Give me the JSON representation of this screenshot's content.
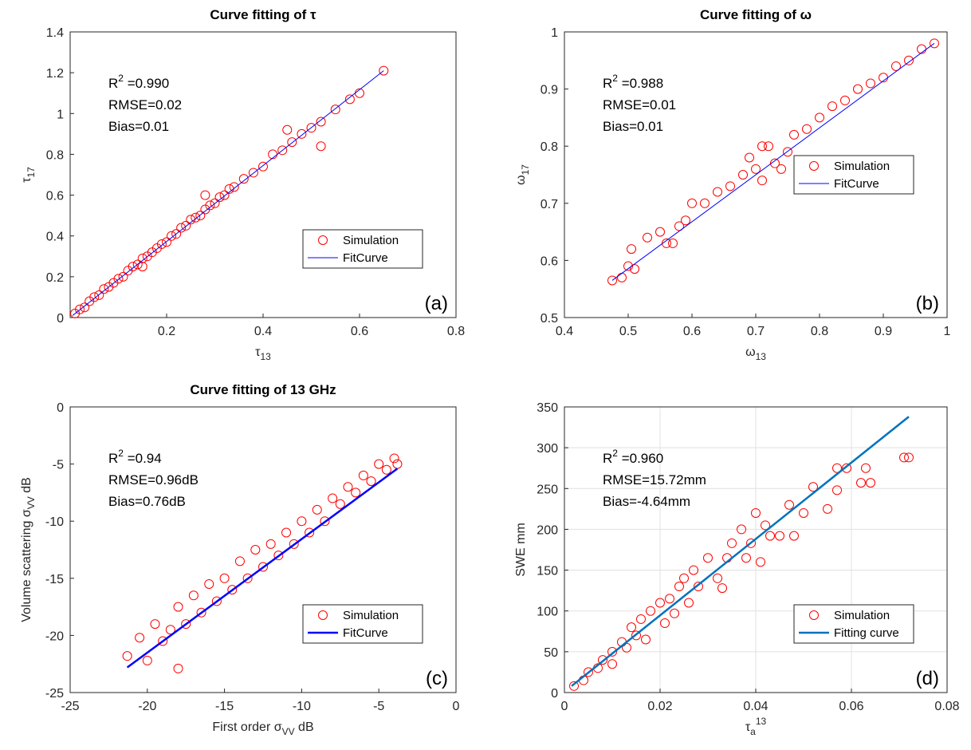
{
  "chart_data": [
    {
      "type": "scatter",
      "title": "Curve fitting of τ",
      "xlabel": [
        {
          "t": "τ"
        },
        {
          "sub": "13"
        }
      ],
      "ylabel": [
        {
          "t": "τ"
        },
        {
          "sub": "17"
        }
      ],
      "xlim": [
        0,
        0.8
      ],
      "xticks": [
        0.2,
        0.4,
        0.6,
        0.8
      ],
      "ylim": [
        0,
        1.4
      ],
      "yticks": [
        0,
        0.2,
        0.4,
        0.6,
        0.8,
        1,
        1.2,
        1.4
      ],
      "grid": false,
      "legend": "lower right",
      "panel_label": "(a)",
      "annotations": [
        [
          {
            "t": "R"
          },
          {
            "sup": "2"
          },
          {
            "t": " =0.990"
          }
        ],
        [
          {
            "t": "RMSE=0.02"
          }
        ],
        [
          {
            "t": "Bias=0.01"
          }
        ]
      ],
      "series": [
        {
          "name": "Simulation",
          "type": "scatter",
          "color": "#ff0000",
          "x": [
            0.01,
            0.02,
            0.03,
            0.04,
            0.05,
            0.06,
            0.07,
            0.08,
            0.09,
            0.1,
            0.11,
            0.12,
            0.13,
            0.14,
            0.15,
            0.16,
            0.17,
            0.18,
            0.19,
            0.2,
            0.21,
            0.22,
            0.23,
            0.24,
            0.25,
            0.26,
            0.27,
            0.28,
            0.29,
            0.3,
            0.31,
            0.32,
            0.33,
            0.34,
            0.36,
            0.38,
            0.4,
            0.42,
            0.44,
            0.46,
            0.48,
            0.5,
            0.52,
            0.55,
            0.58,
            0.6,
            0.65,
            0.52,
            0.45,
            0.28,
            0.15
          ],
          "values": [
            0.02,
            0.04,
            0.05,
            0.08,
            0.1,
            0.11,
            0.14,
            0.15,
            0.17,
            0.19,
            0.2,
            0.23,
            0.25,
            0.26,
            0.29,
            0.3,
            0.32,
            0.34,
            0.36,
            0.37,
            0.4,
            0.41,
            0.44,
            0.45,
            0.48,
            0.49,
            0.5,
            0.53,
            0.55,
            0.56,
            0.59,
            0.6,
            0.63,
            0.64,
            0.68,
            0.71,
            0.74,
            0.8,
            0.82,
            0.86,
            0.9,
            0.93,
            0.96,
            1.02,
            1.07,
            1.1,
            1.21,
            0.84,
            0.92,
            0.6,
            0.25
          ]
        },
        {
          "name": "FitCurve",
          "type": "line",
          "color": "#0000ff",
          "x": [
            0.005,
            0.65
          ],
          "values": [
            0.01,
            1.21
          ]
        }
      ]
    },
    {
      "type": "scatter",
      "title": "Curve fitting of ω",
      "xlabel": [
        {
          "t": "ω"
        },
        {
          "sub": "13"
        }
      ],
      "ylabel": [
        {
          "t": "ω"
        },
        {
          "sub": "17"
        }
      ],
      "xlim": [
        0.4,
        1
      ],
      "xticks": [
        0.4,
        0.5,
        0.6,
        0.7,
        0.8,
        0.9,
        1
      ],
      "ylim": [
        0.5,
        1
      ],
      "yticks": [
        0.5,
        0.6,
        0.7,
        0.8,
        0.9,
        1
      ],
      "grid": false,
      "legend": "right",
      "panel_label": "(b)",
      "annotations": [
        [
          {
            "t": "R"
          },
          {
            "sup": "2"
          },
          {
            "t": " =0.988"
          }
        ],
        [
          {
            "t": "RMSE=0.01"
          }
        ],
        [
          {
            "t": "Bias=0.01"
          }
        ]
      ],
      "series": [
        {
          "name": "Simulation",
          "type": "scatter",
          "color": "#ff0000",
          "x": [
            0.475,
            0.49,
            0.5,
            0.505,
            0.51,
            0.53,
            0.55,
            0.56,
            0.57,
            0.58,
            0.59,
            0.6,
            0.62,
            0.64,
            0.66,
            0.68,
            0.69,
            0.7,
            0.71,
            0.72,
            0.73,
            0.75,
            0.76,
            0.78,
            0.8,
            0.82,
            0.84,
            0.86,
            0.88,
            0.9,
            0.92,
            0.94,
            0.96,
            0.98,
            0.71,
            0.74
          ],
          "values": [
            0.565,
            0.57,
            0.59,
            0.62,
            0.585,
            0.64,
            0.65,
            0.63,
            0.63,
            0.66,
            0.67,
            0.7,
            0.7,
            0.72,
            0.73,
            0.75,
            0.78,
            0.76,
            0.74,
            0.8,
            0.77,
            0.79,
            0.82,
            0.83,
            0.85,
            0.87,
            0.88,
            0.9,
            0.91,
            0.92,
            0.94,
            0.95,
            0.97,
            0.98,
            0.8,
            0.76
          ]
        },
        {
          "name": "FitCurve",
          "type": "line",
          "color": "#0000ff",
          "x": [
            0.475,
            0.98
          ],
          "values": [
            0.565,
            0.98
          ]
        }
      ]
    },
    {
      "type": "scatter",
      "title": "Curve fitting of 13 GHz",
      "xlabel": [
        {
          "t": "First order σ"
        },
        {
          "sub": "VV"
        },
        {
          "t": " dB"
        }
      ],
      "ylabel": [
        {
          "t": "Volume scattering σ"
        },
        {
          "sub": "VV"
        },
        {
          "t": " dB"
        }
      ],
      "xlim": [
        -25,
        0
      ],
      "xticks": [
        -25,
        -20,
        -15,
        -10,
        -5,
        0
      ],
      "ylim": [
        -25,
        0
      ],
      "yticks": [
        -25,
        -20,
        -15,
        -10,
        -5,
        0
      ],
      "grid": false,
      "legend": "lower right",
      "panel_label": "(c)",
      "annotations": [
        [
          {
            "t": "R"
          },
          {
            "sup": "2"
          },
          {
            "t": " =0.94"
          }
        ],
        [
          {
            "t": "RMSE=0.96dB"
          }
        ],
        [
          {
            "t": "Bias=0.76dB"
          }
        ]
      ],
      "series": [
        {
          "name": "Simulation",
          "type": "scatter",
          "color": "#ff0000",
          "x": [
            -21.3,
            -20.5,
            -20,
            -19.5,
            -19,
            -18.5,
            -18,
            -18,
            -17.5,
            -17,
            -16.5,
            -16,
            -15.5,
            -15,
            -14.5,
            -14,
            -13.5,
            -13,
            -12.5,
            -12,
            -11.5,
            -11,
            -10.5,
            -10,
            -9.5,
            -9,
            -8.5,
            -8,
            -7.5,
            -7,
            -6.5,
            -6,
            -5.5,
            -5,
            -4.5,
            -4,
            -3.8
          ],
          "values": [
            -21.8,
            -20.2,
            -22.2,
            -19,
            -20.5,
            -19.5,
            -22.9,
            -17.5,
            -19,
            -16.5,
            -18,
            -15.5,
            -17,
            -15,
            -16,
            -13.5,
            -15,
            -12.5,
            -14,
            -12,
            -13,
            -11,
            -12,
            -10,
            -11,
            -9,
            -10,
            -8,
            -8.5,
            -7,
            -7.5,
            -6,
            -6.5,
            -5,
            -5.5,
            -4.5,
            -5
          ]
        },
        {
          "name": "FitCurve",
          "type": "line",
          "color": "#0000ff",
          "x": [
            -21.3,
            -3.8
          ],
          "values": [
            -22.8,
            -5.4
          ]
        }
      ]
    },
    {
      "type": "scatter",
      "title": null,
      "xlabel": [
        {
          "t": "τ"
        },
        {
          "sub": "a"
        },
        {
          "sup": "13"
        }
      ],
      "ylabel": [
        {
          "t": "SWE mm"
        }
      ],
      "xlim": [
        0,
        0.08
      ],
      "xticks": [
        0,
        0.02,
        0.04,
        0.06,
        0.08
      ],
      "ylim": [
        0,
        350
      ],
      "yticks": [
        0,
        50,
        100,
        150,
        200,
        250,
        300,
        350
      ],
      "grid": true,
      "legend": "lower right",
      "panel_label": "(d)",
      "annotations": [
        [
          {
            "t": "R"
          },
          {
            "sup": "2"
          },
          {
            "t": " =0.960"
          }
        ],
        [
          {
            "t": "RMSE=15.72mm"
          }
        ],
        [
          {
            "t": "Bias=-4.64mm"
          }
        ]
      ],
      "series": [
        {
          "name": "Simulation",
          "type": "scatter",
          "color": "#ff0000",
          "x": [
            0.002,
            0.004,
            0.005,
            0.007,
            0.008,
            0.01,
            0.01,
            0.012,
            0.013,
            0.014,
            0.015,
            0.016,
            0.017,
            0.018,
            0.02,
            0.021,
            0.022,
            0.023,
            0.024,
            0.025,
            0.026,
            0.027,
            0.028,
            0.03,
            0.032,
            0.033,
            0.034,
            0.035,
            0.037,
            0.038,
            0.039,
            0.04,
            0.041,
            0.042,
            0.043,
            0.045,
            0.047,
            0.048,
            0.05,
            0.052,
            0.055,
            0.057,
            0.057,
            0.059,
            0.062,
            0.063,
            0.064,
            0.071,
            0.072
          ],
          "values": [
            8,
            15,
            25,
            30,
            40,
            50,
            35,
            62,
            55,
            80,
            70,
            90,
            65,
            100,
            110,
            85,
            115,
            97,
            130,
            140,
            110,
            150,
            130,
            165,
            140,
            128,
            165,
            183,
            200,
            165,
            183,
            220,
            160,
            205,
            192,
            192,
            230,
            192,
            220,
            252,
            225,
            275,
            248,
            275,
            257,
            275,
            257,
            288,
            288
          ]
        },
        {
          "name": "Fitting curve",
          "type": "line",
          "color": "#0072bd",
          "x": [
            0.0015,
            0.072
          ],
          "values": [
            8,
            338
          ]
        }
      ]
    }
  ]
}
